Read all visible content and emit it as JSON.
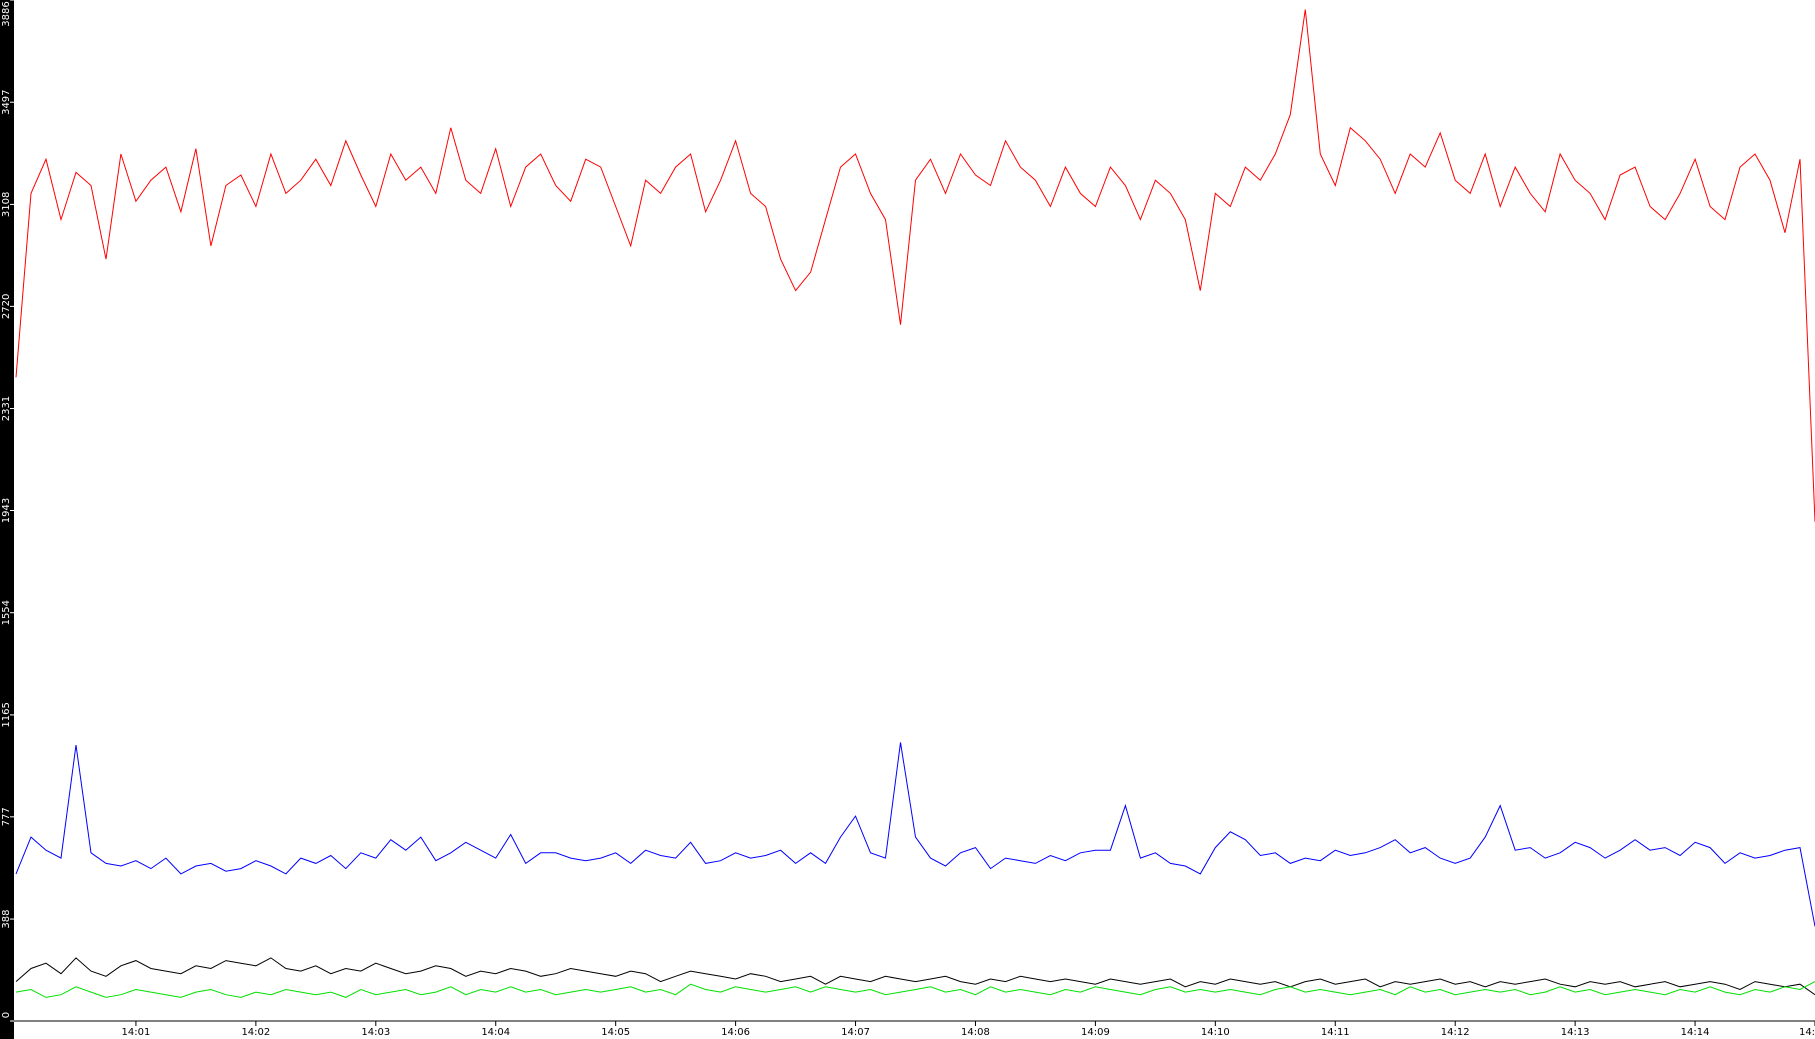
{
  "chart_data": {
    "type": "line",
    "categories": [
      null,
      null,
      null,
      null,
      null,
      null,
      null,
      null,
      "14:01",
      null,
      null,
      null,
      null,
      null,
      null,
      null,
      "14:02",
      null,
      null,
      null,
      null,
      null,
      null,
      null,
      "14:03",
      null,
      null,
      null,
      null,
      null,
      null,
      null,
      "14:04",
      null,
      null,
      null,
      null,
      null,
      null,
      null,
      "14:05",
      null,
      null,
      null,
      null,
      null,
      null,
      null,
      "14:06",
      null,
      null,
      null,
      null,
      null,
      null,
      null,
      "14:07",
      null,
      null,
      null,
      null,
      null,
      null,
      null,
      "14:08",
      null,
      null,
      null,
      null,
      null,
      null,
      null,
      "14:09",
      null,
      null,
      null,
      null,
      null,
      null,
      null,
      "14:10",
      null,
      null,
      null,
      null,
      null,
      null,
      null,
      "14:11",
      null,
      null,
      null,
      null,
      null,
      null,
      null,
      "14:12",
      null,
      null,
      null,
      null,
      null,
      null,
      null,
      "14:13",
      null,
      null,
      null,
      null,
      null,
      null,
      null,
      "14:14",
      null,
      null,
      null,
      null,
      null,
      null,
      null,
      "14:"
    ],
    "ylim": [
      0,
      3886
    ],
    "yticks": [
      0,
      388,
      777,
      1165,
      1554,
      1943,
      2331,
      2720,
      3108,
      3497,
      3886
    ],
    "series": [
      {
        "color": "#ff0000",
        "values": [
          2450,
          3150,
          3280,
          3050,
          3230,
          3180,
          2900,
          3300,
          3120,
          3200,
          3250,
          3080,
          3320,
          2950,
          3180,
          3220,
          3100,
          3300,
          3150,
          3200,
          3280,
          3180,
          3350,
          3220,
          3100,
          3300,
          3200,
          3250,
          3150,
          3400,
          3200,
          3150,
          3320,
          3100,
          3250,
          3300,
          3180,
          3120,
          3280,
          3250,
          3100,
          2950,
          3200,
          3150,
          3250,
          3300,
          3080,
          3200,
          3350,
          3150,
          3100,
          2900,
          2780,
          2850,
          3050,
          3250,
          3300,
          3150,
          3050,
          2650,
          3200,
          3280,
          3150,
          3300,
          3220,
          3180,
          3350,
          3250,
          3200,
          3100,
          3250,
          3150,
          3100,
          3250,
          3180,
          3050,
          3200,
          3150,
          3050,
          2780,
          3150,
          3100,
          3250,
          3200,
          3300,
          3450,
          3850,
          3300,
          3180,
          3400,
          3350,
          3280,
          3150,
          3300,
          3250,
          3380,
          3200,
          3150,
          3300,
          3100,
          3250,
          3150,
          3080,
          3300,
          3200,
          3150,
          3050,
          3220,
          3250,
          3100,
          3050,
          3150,
          3280,
          3100,
          3050,
          3250,
          3300,
          3200,
          3000,
          3280,
          1900
        ]
      },
      {
        "color": "#0000ff",
        "values": [
          560,
          700,
          650,
          620,
          1050,
          640,
          600,
          590,
          610,
          580,
          620,
          560,
          590,
          600,
          570,
          580,
          610,
          590,
          560,
          620,
          600,
          630,
          580,
          640,
          620,
          690,
          650,
          700,
          610,
          640,
          680,
          650,
          620,
          710,
          600,
          640,
          640,
          620,
          610,
          620,
          640,
          600,
          650,
          630,
          620,
          680,
          600,
          610,
          640,
          620,
          630,
          650,
          600,
          640,
          600,
          700,
          780,
          640,
          620,
          1060,
          700,
          620,
          590,
          640,
          660,
          580,
          620,
          610,
          600,
          630,
          610,
          640,
          650,
          650,
          820,
          620,
          640,
          600,
          590,
          560,
          660,
          720,
          690,
          630,
          640,
          600,
          620,
          610,
          650,
          630,
          640,
          660,
          690,
          640,
          660,
          620,
          600,
          620,
          700,
          820,
          650,
          660,
          620,
          640,
          680,
          660,
          620,
          650,
          690,
          650,
          660,
          630,
          680,
          660,
          600,
          640,
          620,
          630,
          650,
          660,
          360
        ]
      },
      {
        "color": "#000000",
        "values": [
          150,
          200,
          220,
          180,
          240,
          190,
          170,
          210,
          230,
          200,
          190,
          180,
          210,
          200,
          230,
          220,
          210,
          240,
          200,
          190,
          210,
          180,
          200,
          190,
          220,
          200,
          180,
          190,
          210,
          200,
          170,
          190,
          180,
          200,
          190,
          170,
          180,
          200,
          190,
          180,
          170,
          190,
          180,
          150,
          170,
          190,
          180,
          170,
          160,
          180,
          170,
          150,
          160,
          170,
          140,
          170,
          160,
          150,
          170,
          160,
          150,
          160,
          170,
          150,
          140,
          160,
          150,
          170,
          160,
          150,
          160,
          150,
          140,
          160,
          150,
          140,
          150,
          160,
          130,
          150,
          140,
          160,
          150,
          140,
          150,
          130,
          150,
          160,
          140,
          150,
          160,
          130,
          150,
          140,
          150,
          160,
          140,
          150,
          130,
          150,
          140,
          150,
          160,
          140,
          130,
          150,
          140,
          150,
          130,
          140,
          150,
          130,
          140,
          150,
          140,
          120,
          150,
          140,
          130,
          140,
          100
        ]
      },
      {
        "color": "#00e000",
        "values": [
          110,
          120,
          90,
          100,
          130,
          110,
          90,
          100,
          120,
          110,
          100,
          90,
          110,
          120,
          100,
          90,
          110,
          100,
          120,
          110,
          100,
          110,
          90,
          120,
          100,
          110,
          120,
          100,
          110,
          130,
          100,
          120,
          110,
          130,
          110,
          120,
          100,
          110,
          120,
          110,
          120,
          130,
          110,
          120,
          100,
          140,
          120,
          110,
          130,
          120,
          110,
          120,
          130,
          110,
          130,
          120,
          110,
          120,
          100,
          110,
          120,
          130,
          110,
          120,
          100,
          130,
          110,
          120,
          110,
          100,
          120,
          110,
          130,
          120,
          110,
          100,
          120,
          130,
          110,
          120,
          110,
          120,
          110,
          100,
          120,
          130,
          110,
          120,
          110,
          100,
          110,
          120,
          100,
          130,
          110,
          120,
          100,
          110,
          120,
          110,
          120,
          100,
          110,
          130,
          110,
          120,
          100,
          110,
          120,
          110,
          100,
          120,
          110,
          130,
          110,
          100,
          120,
          110,
          130,
          120,
          150
        ]
      }
    ]
  }
}
